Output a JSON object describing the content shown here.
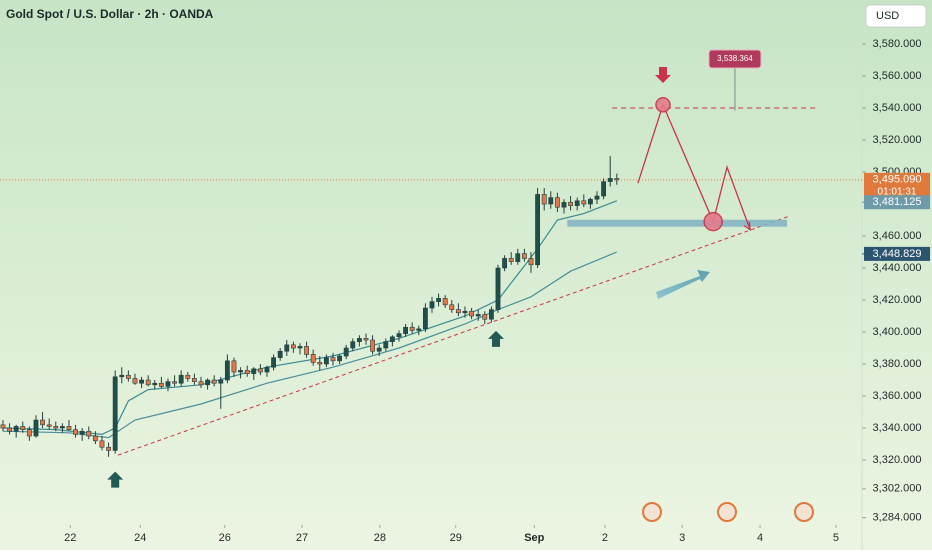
{
  "chart_data": {
    "type": "candlestick",
    "title": "Gold Spot / U.S. Dollar · 2h · OANDA",
    "currency": "USD",
    "up_color": "#1f4f4b",
    "down_color": "#e4774a",
    "grid": false,
    "xlim": [
      -0.45,
      130.15
    ],
    "ylim": [
      3279.4,
      3607.5
    ],
    "xticks": [
      {
        "value": 10.2,
        "label": "22"
      },
      {
        "value": 20.8,
        "label": "24"
      },
      {
        "value": 33.6,
        "label": "26"
      },
      {
        "value": 45.3,
        "label": "27"
      },
      {
        "value": 57.1,
        "label": "28"
      },
      {
        "value": 68.6,
        "label": "29"
      },
      {
        "value": 80.5,
        "label": "Sep"
      },
      {
        "value": 91.2,
        "label": "2"
      },
      {
        "value": 102.9,
        "label": "3"
      },
      {
        "value": 114.7,
        "label": "4"
      },
      {
        "value": 126.2,
        "label": "5"
      }
    ],
    "yticks": [
      {
        "value": 3580,
        "label": "3,580.000"
      },
      {
        "value": 3560,
        "label": "3,560.000"
      },
      {
        "value": 3540,
        "label": "3,540.000"
      },
      {
        "value": 3520,
        "label": "3,520.000"
      },
      {
        "value": 3500,
        "label": "3,500.000"
      },
      {
        "value": 3460,
        "label": "3,460.000"
      },
      {
        "value": 3440,
        "label": "3,440.000"
      },
      {
        "value": 3420,
        "label": "3,420.000"
      },
      {
        "value": 3400,
        "label": "3,400.000"
      },
      {
        "value": 3380,
        "label": "3,380.000"
      },
      {
        "value": 3360,
        "label": "3,360.000"
      },
      {
        "value": 3340,
        "label": "3,340.000"
      },
      {
        "value": 3320,
        "label": "3,320.000"
      },
      {
        "value": 3302,
        "label": "3,302.000"
      },
      {
        "value": 3284,
        "label": "3,284.000"
      }
    ],
    "candles": [
      [
        3342,
        3345,
        3338,
        3340
      ],
      [
        3340,
        3343,
        3336,
        3338
      ],
      [
        3338,
        3342,
        3334,
        3341
      ],
      [
        3341,
        3344,
        3337,
        3339
      ],
      [
        3339,
        3341,
        3332,
        3335
      ],
      [
        3335,
        3348,
        3334,
        3345
      ],
      [
        3345,
        3350,
        3340,
        3342
      ],
      [
        3342,
        3346,
        3339,
        3341
      ],
      [
        3341,
        3344,
        3338,
        3340
      ],
      [
        3340,
        3343,
        3337,
        3341
      ],
      [
        3341,
        3345,
        3338,
        3339
      ],
      [
        3339,
        3342,
        3334,
        3336
      ],
      [
        3336,
        3340,
        3332,
        3338
      ],
      [
        3338,
        3341,
        3333,
        3335
      ],
      [
        3335,
        3338,
        3330,
        3332
      ],
      [
        3332,
        3335,
        3326,
        3328
      ],
      [
        3328,
        3331,
        3322,
        3326
      ],
      [
        3326,
        3376,
        3324,
        3372
      ],
      [
        3372,
        3378,
        3368,
        3373
      ],
      [
        3373,
        3376,
        3369,
        3371
      ],
      [
        3371,
        3374,
        3367,
        3368
      ],
      [
        3368,
        3372,
        3365,
        3370
      ],
      [
        3370,
        3373,
        3366,
        3367
      ],
      [
        3367,
        3370,
        3364,
        3368
      ],
      [
        3368,
        3372,
        3365,
        3366
      ],
      [
        3366,
        3371,
        3363,
        3369
      ],
      [
        3369,
        3373,
        3366,
        3368
      ],
      [
        3368,
        3376,
        3366,
        3373
      ],
      [
        3373,
        3375,
        3369,
        3371
      ],
      [
        3371,
        3374,
        3367,
        3369
      ],
      [
        3369,
        3372,
        3365,
        3367
      ],
      [
        3367,
        3371,
        3364,
        3370
      ],
      [
        3370,
        3373,
        3366,
        3368
      ],
      [
        3368,
        3372,
        3352,
        3370
      ],
      [
        3370,
        3386,
        3368,
        3382
      ],
      [
        3382,
        3384,
        3372,
        3375
      ],
      [
        3375,
        3378,
        3371,
        3376
      ],
      [
        3376,
        3379,
        3372,
        3374
      ],
      [
        3374,
        3378,
        3370,
        3377
      ],
      [
        3377,
        3380,
        3373,
        3375
      ],
      [
        3375,
        3379,
        3372,
        3378
      ],
      [
        3378,
        3386,
        3376,
        3384
      ],
      [
        3384,
        3390,
        3382,
        3388
      ],
      [
        3388,
        3395,
        3385,
        3392
      ],
      [
        3392,
        3394,
        3387,
        3390
      ],
      [
        3390,
        3393,
        3386,
        3391
      ],
      [
        3391,
        3394,
        3384,
        3386
      ],
      [
        3386,
        3389,
        3379,
        3381
      ],
      [
        3381,
        3385,
        3376,
        3380
      ],
      [
        3380,
        3386,
        3378,
        3384
      ],
      [
        3384,
        3387,
        3379,
        3382
      ],
      [
        3382,
        3386,
        3380,
        3385
      ],
      [
        3385,
        3392,
        3383,
        3390
      ],
      [
        3390,
        3396,
        3388,
        3394
      ],
      [
        3394,
        3398,
        3391,
        3396
      ],
      [
        3396,
        3399,
        3392,
        3395
      ],
      [
        3395,
        3398,
        3386,
        3388
      ],
      [
        3388,
        3392,
        3385,
        3390
      ],
      [
        3390,
        3396,
        3388,
        3394
      ],
      [
        3394,
        3398,
        3391,
        3397
      ],
      [
        3397,
        3401,
        3394,
        3399
      ],
      [
        3399,
        3405,
        3397,
        3403
      ],
      [
        3403,
        3406,
        3399,
        3401
      ],
      [
        3401,
        3404,
        3398,
        3402
      ],
      [
        3402,
        3418,
        3400,
        3415
      ],
      [
        3415,
        3422,
        3412,
        3419
      ],
      [
        3419,
        3424,
        3416,
        3421
      ],
      [
        3421,
        3423,
        3415,
        3417
      ],
      [
        3417,
        3420,
        3412,
        3414
      ],
      [
        3414,
        3418,
        3410,
        3412
      ],
      [
        3412,
        3416,
        3409,
        3413
      ],
      [
        3413,
        3415,
        3408,
        3410
      ],
      [
        3410,
        3414,
        3407,
        3411
      ],
      [
        3411,
        3413,
        3405,
        3408
      ],
      [
        3408,
        3416,
        3406,
        3414
      ],
      [
        3414,
        3442,
        3412,
        3440
      ],
      [
        3440,
        3448,
        3438,
        3446
      ],
      [
        3446,
        3450,
        3442,
        3444
      ],
      [
        3444,
        3452,
        3442,
        3449
      ],
      [
        3449,
        3452,
        3444,
        3446
      ],
      [
        3446,
        3450,
        3437,
        3442
      ],
      [
        3442,
        3490,
        3440,
        3486
      ],
      [
        3486,
        3490,
        3476,
        3480
      ],
      [
        3480,
        3488,
        3477,
        3484
      ],
      [
        3484,
        3487,
        3475,
        3478
      ],
      [
        3478,
        3483,
        3474,
        3481
      ],
      [
        3481,
        3485,
        3476,
        3479
      ],
      [
        3479,
        3484,
        3476,
        3482
      ],
      [
        3482,
        3486,
        3478,
        3480
      ],
      [
        3480,
        3484,
        3477,
        3483
      ],
      [
        3483,
        3488,
        3480,
        3485
      ],
      [
        3485,
        3496,
        3483,
        3494
      ],
      [
        3494,
        3510,
        3491,
        3496
      ],
      [
        3496,
        3499,
        3492,
        3495.09
      ]
    ],
    "moving_averages": [
      {
        "color": "#3b8a92",
        "x": [
          0,
          8,
          15,
          17,
          19,
          22,
          30,
          40,
          50,
          60,
          70,
          75,
          78,
          81,
          84,
          88,
          93
        ],
        "values": [
          3340,
          3339,
          3336,
          3340,
          3357,
          3364,
          3367,
          3378,
          3385,
          3396,
          3410,
          3420,
          3436,
          3452,
          3470,
          3474,
          3482
        ]
      },
      {
        "color": "#4a8f99",
        "x": [
          0,
          10,
          16,
          20,
          30,
          40,
          50,
          60,
          70,
          75,
          80,
          86,
          93
        ],
        "values": [
          3338,
          3337,
          3334,
          3345,
          3355,
          3368,
          3378,
          3390,
          3405,
          3414,
          3422,
          3438,
          3450
        ]
      }
    ],
    "current_price": {
      "value": 3495.09,
      "label": "3,495.090",
      "countdown": "01:01:31",
      "color": "#e07a3c"
    },
    "price_labels": [
      {
        "value": 3481.125,
        "label": "3,481.125",
        "color": "#6f9aa8"
      },
      {
        "value": 3448.829,
        "label": "3,448.829",
        "color": "#2b5471"
      }
    ],
    "resistance": {
      "value": 3540,
      "x": [
        92.3,
        123.5
      ],
      "color": "#c9344a"
    },
    "support_zone": {
      "value": 3468,
      "x": [
        85.5,
        118.8
      ],
      "color": "#7fb3c4"
    },
    "trendline": {
      "x": [
        17.4,
        119.2
      ],
      "values": [
        3323,
        3472.5
      ],
      "color": "#c9344a"
    },
    "projection": {
      "x": [
        96.2,
        100,
        107.6,
        109.7,
        113.2
      ],
      "values": [
        3493,
        3542,
        3469,
        3503,
        3464
      ],
      "color": "#c9344a"
    },
    "callout": {
      "label": "3,538.364",
      "value": 3538.364,
      "x": 110.9,
      "color": "#b03a5b"
    },
    "signals": [
      {
        "kind": "buy",
        "x": 17
      },
      {
        "kind": "buy",
        "x": 74.7
      },
      {
        "kind": "sell",
        "x": 100
      }
    ]
  }
}
